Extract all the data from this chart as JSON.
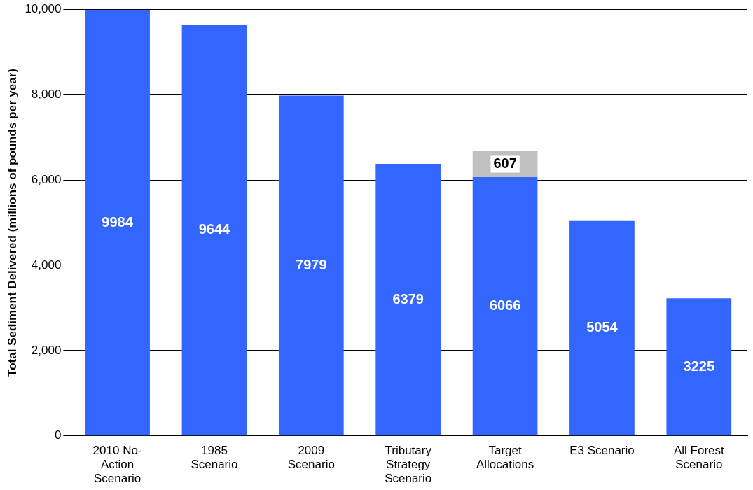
{
  "chart_data": {
    "type": "bar",
    "stacked": true,
    "ylabel": "Total Sediment Delivered (millions of pounds per year)",
    "categories": [
      "2010 No-Action Scenario",
      "1985 Scenario",
      "2009 Scenario",
      "Tributary Strategy Scenario",
      "Target Allocations",
      "E3 Scenario",
      "All Forest Scenario"
    ],
    "series": [
      {
        "color": "#3366ff",
        "values": [
          9984,
          9644,
          7979,
          6379,
          6066,
          5054,
          3225
        ]
      },
      {
        "color": "#c0c0c0",
        "values": [
          null,
          null,
          null,
          null,
          607,
          null,
          null
        ]
      }
    ],
    "ylim": [
      0,
      10000
    ],
    "yticks": [
      0,
      {
        "value": 2000,
        "label": "2,000"
      },
      {
        "value": 4000,
        "label": "4,000"
      },
      {
        "value": 6000,
        "label": "6,000"
      },
      {
        "value": 8000,
        "label": "8,000"
      },
      {
        "value": 10000,
        "label": "10,000"
      }
    ],
    "grid": "y",
    "legend": false,
    "data_labels": true
  }
}
